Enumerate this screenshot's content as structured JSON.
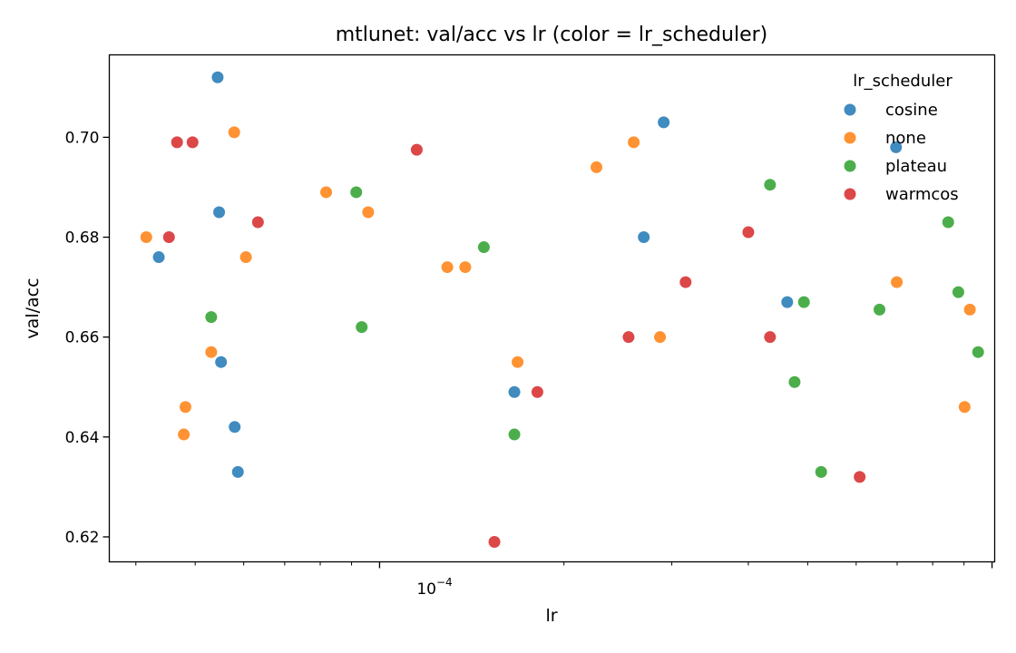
{
  "chart_data": {
    "type": "scatter",
    "title": "mtlunet: val/acc vs lr (color = lr_scheduler)",
    "xlabel": "lr",
    "ylabel": "val/acc",
    "xscale": "log",
    "xlim": [
      3.62e-05,
      0.00101
    ],
    "ylim": [
      0.615,
      0.7165
    ],
    "x_tick_label": "10^-4",
    "y_ticks": [
      0.62,
      0.64,
      0.66,
      0.68,
      0.7
    ],
    "y_tick_labels": [
      "0.62",
      "0.64",
      "0.66",
      "0.68",
      "0.70"
    ],
    "legend": {
      "title": "lr_scheduler",
      "placement": "top-right"
    },
    "grid": false,
    "series": [
      {
        "name": "cosine",
        "color": "#1f77b4",
        "points": [
          {
            "x": 4.36e-05,
            "y": 0.676
          },
          {
            "x": 5.44e-05,
            "y": 0.712
          },
          {
            "x": 5.47e-05,
            "y": 0.685
          },
          {
            "x": 5.51e-05,
            "y": 0.655
          },
          {
            "x": 5.8e-05,
            "y": 0.642
          },
          {
            "x": 5.87e-05,
            "y": 0.633
          },
          {
            "x": 0.000166,
            "y": 0.649
          },
          {
            "x": 0.00027,
            "y": 0.68
          },
          {
            "x": 0.000291,
            "y": 0.703
          },
          {
            "x": 0.000463,
            "y": 0.667
          },
          {
            "x": 0.000697,
            "y": 0.698
          }
        ]
      },
      {
        "name": "none",
        "color": "#ff7f0e",
        "points": [
          {
            "x": 4.16e-05,
            "y": 0.68
          },
          {
            "x": 4.79e-05,
            "y": 0.6405
          },
          {
            "x": 4.82e-05,
            "y": 0.646
          },
          {
            "x": 5.31e-05,
            "y": 0.657
          },
          {
            "x": 5.79e-05,
            "y": 0.701
          },
          {
            "x": 6.05e-05,
            "y": 0.676
          },
          {
            "x": 8.18e-05,
            "y": 0.689
          },
          {
            "x": 9.58e-05,
            "y": 0.685
          },
          {
            "x": 0.000129,
            "y": 0.674
          },
          {
            "x": 0.000138,
            "y": 0.674
          },
          {
            "x": 0.000168,
            "y": 0.655
          },
          {
            "x": 0.000226,
            "y": 0.694
          },
          {
            "x": 0.00026,
            "y": 0.699
          },
          {
            "x": 0.000287,
            "y": 0.66
          },
          {
            "x": 0.000699,
            "y": 0.671
          },
          {
            "x": 0.000902,
            "y": 0.646
          },
          {
            "x": 0.00092,
            "y": 0.6655
          }
        ]
      },
      {
        "name": "plateau",
        "color": "#2ca02c",
        "points": [
          {
            "x": 5.31e-05,
            "y": 0.664
          },
          {
            "x": 9.16e-05,
            "y": 0.689
          },
          {
            "x": 9.35e-05,
            "y": 0.662
          },
          {
            "x": 0.000148,
            "y": 0.678
          },
          {
            "x": 0.000166,
            "y": 0.6405
          },
          {
            "x": 0.000434,
            "y": 0.6905
          },
          {
            "x": 0.000476,
            "y": 0.651
          },
          {
            "x": 0.000493,
            "y": 0.667
          },
          {
            "x": 0.000526,
            "y": 0.633
          },
          {
            "x": 0.000655,
            "y": 0.6655
          },
          {
            "x": 0.000848,
            "y": 0.683
          },
          {
            "x": 0.000881,
            "y": 0.669
          },
          {
            "x": 0.000949,
            "y": 0.657
          }
        ]
      },
      {
        "name": "warmcos",
        "color": "#d62728",
        "points": [
          {
            "x": 4.53e-05,
            "y": 0.68
          },
          {
            "x": 4.67e-05,
            "y": 0.699
          },
          {
            "x": 4.95e-05,
            "y": 0.699
          },
          {
            "x": 6.33e-05,
            "y": 0.683
          },
          {
            "x": 0.000115,
            "y": 0.6975
          },
          {
            "x": 0.000154,
            "y": 0.619
          },
          {
            "x": 0.000181,
            "y": 0.649
          },
          {
            "x": 0.000255,
            "y": 0.66
          },
          {
            "x": 0.000316,
            "y": 0.671
          },
          {
            "x": 0.0004,
            "y": 0.681
          },
          {
            "x": 0.000434,
            "y": 0.66
          },
          {
            "x": 0.000608,
            "y": 0.632
          }
        ]
      }
    ]
  }
}
